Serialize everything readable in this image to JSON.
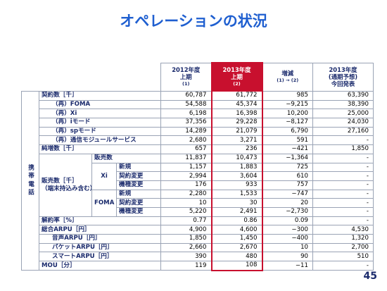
{
  "title": "オペレーションの状況",
  "page_number": "45",
  "table": {
    "category": "携帯電話",
    "columns": [
      {
        "lines": [
          "2012年度",
          "上期"
        ],
        "note": "(1)"
      },
      {
        "lines": [
          "2013年度",
          "上期"
        ],
        "note": "(2)",
        "highlight": "#c8102e"
      },
      {
        "lines": [
          "増減"
        ],
        "note": "(1) → (2)"
      },
      {
        "lines": [
          "2013年度",
          "(通期予想)",
          "今回発表"
        ]
      }
    ],
    "sections": [
      {
        "label": "契約数［千］",
        "values": [
          "60,787",
          "61,772",
          "985",
          "63,390"
        ],
        "breakdown": [
          {
            "label": "（再）FOMA",
            "values": [
              "54,588",
              "45,374",
              "−9,215",
              "38,390"
            ]
          },
          {
            "label": "（再）Xi",
            "values": [
              "6,198",
              "16,398",
              "10,200",
              "25,000"
            ]
          },
          {
            "label": "（再）iモード",
            "values": [
              "37,356",
              "29,228",
              "−8,127",
              "24,030"
            ]
          },
          {
            "label": "（再）spモード",
            "values": [
              "14,289",
              "21,079",
              "6,790",
              "27,160"
            ]
          },
          {
            "label": "（再）通信モジュールサービス",
            "values": [
              "2,680",
              "3,271",
              "591",
              "-"
            ]
          }
        ]
      },
      {
        "label": "純増数［千］",
        "values": [
          "657",
          "236",
          "−421",
          "1,850"
        ]
      },
      {
        "label": "販売数［千］",
        "note": "（端末持込み含む）",
        "total": {
          "label": "販売数",
          "values": [
            "11,837",
            "10,473",
            "−1,364",
            "-"
          ]
        },
        "groups": [
          {
            "label": "Xi",
            "rows": [
              {
                "label": "新規",
                "values": [
                  "1,157",
                  "1,883",
                  "725",
                  "-"
                ]
              },
              {
                "label": "契約変更",
                "values": [
                  "2,994",
                  "3,604",
                  "610",
                  "-"
                ]
              },
              {
                "label": "機種変更",
                "values": [
                  "176",
                  "933",
                  "757",
                  "-"
                ]
              }
            ]
          },
          {
            "label": "FOMA",
            "rows": [
              {
                "label": "新規",
                "values": [
                  "2,280",
                  "1,533",
                  "−747",
                  "-"
                ]
              },
              {
                "label": "契約変更",
                "values": [
                  "10",
                  "30",
                  "20",
                  "-"
                ]
              },
              {
                "label": "機種変更",
                "values": [
                  "5,220",
                  "2,491",
                  "−2,730",
                  "-"
                ]
              }
            ]
          }
        ]
      },
      {
        "label": "解約率［%］",
        "values": [
          "0.77",
          "0.86",
          "0.09",
          "-"
        ]
      },
      {
        "label": "総合ARPU［円］",
        "values": [
          "4,900",
          "4,600",
          "−300",
          "4,530"
        ],
        "breakdown": [
          {
            "label": "音声ARPU［円］",
            "values": [
              "1,850",
              "1,450",
              "−400",
              "1,320"
            ]
          },
          {
            "label": "パケットARPU［円］",
            "values": [
              "2,660",
              "2,670",
              "10",
              "2,700"
            ]
          },
          {
            "label": "スマートARPU［円］",
            "values": [
              "390",
              "480",
              "90",
              "510"
            ]
          }
        ]
      },
      {
        "label": "MOU［分］",
        "values": [
          "119",
          "108",
          "−11",
          "-"
        ]
      }
    ]
  }
}
